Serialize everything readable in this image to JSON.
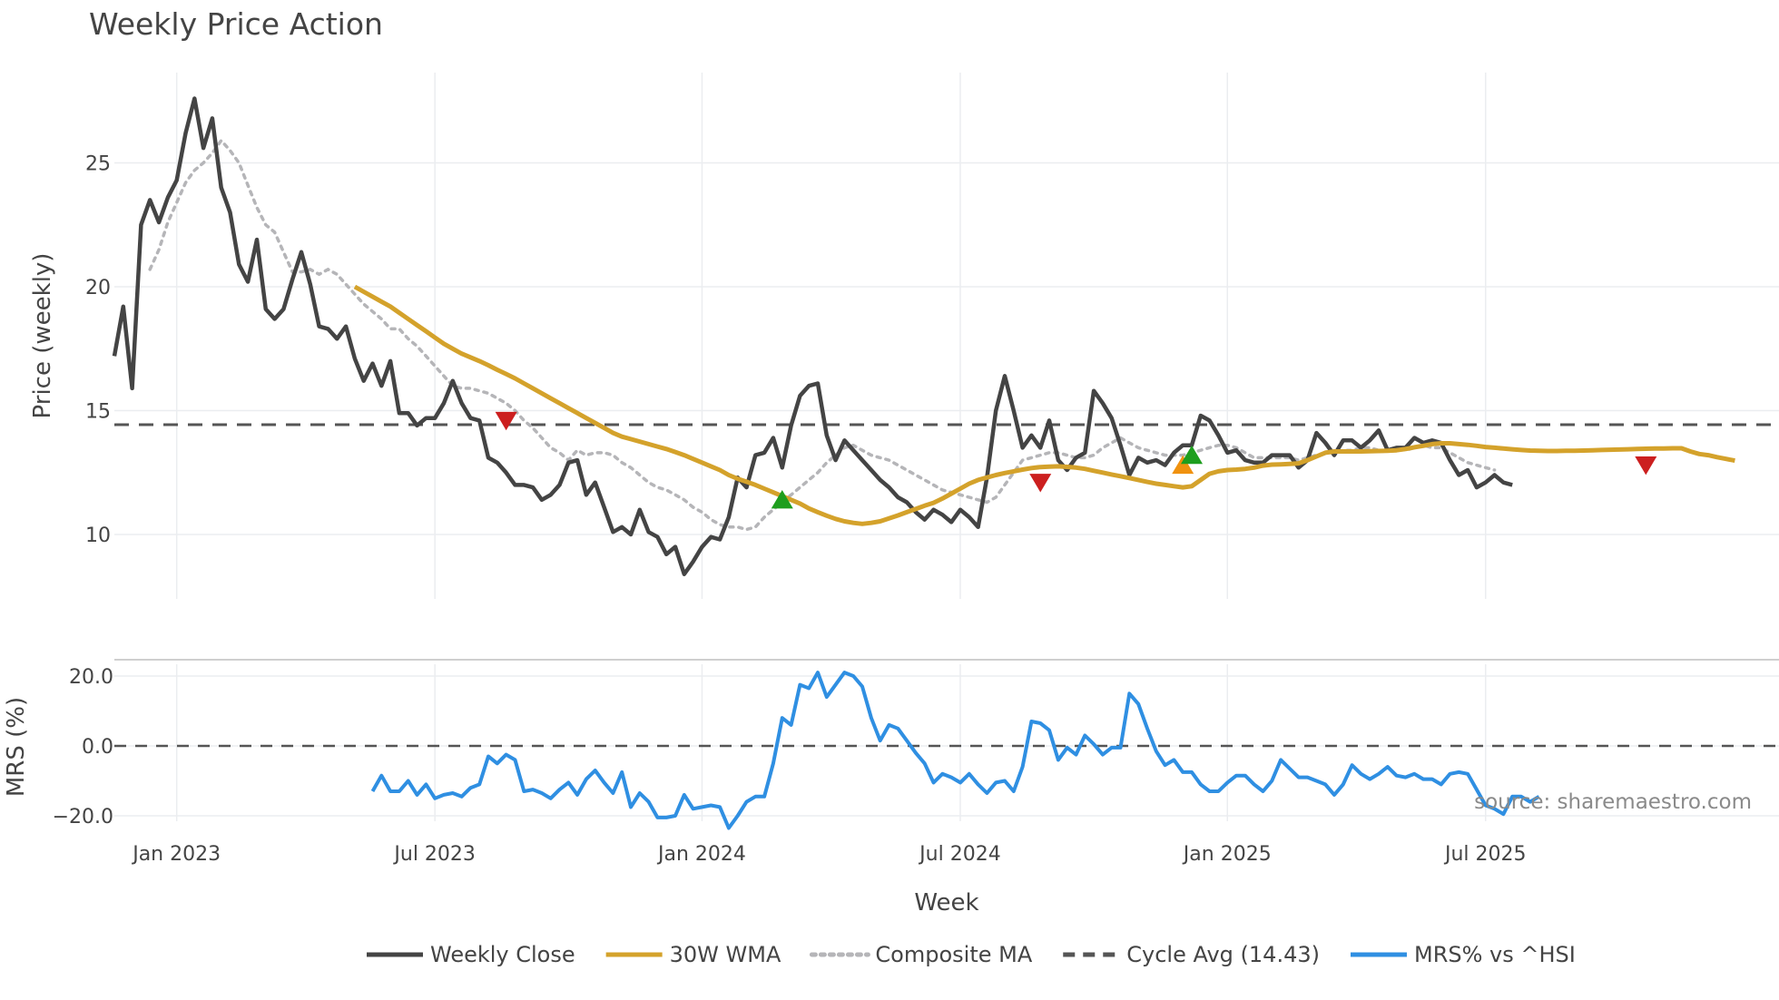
{
  "chart_data": {
    "type": "line",
    "title": "Weekly Price Action",
    "xlabel": "Week",
    "source": "source: sharemaestro.com",
    "x_ticks": [
      "Jan 2023",
      "Jul 2023",
      "Jan 2024",
      "Jul 2024",
      "Jan 2025",
      "Jul 2025"
    ],
    "price_panel": {
      "ylabel": "Price (weekly)",
      "y_ticks": [
        10,
        15,
        20,
        25
      ],
      "ylim": [
        7.5,
        28.5
      ],
      "weekly_close": [
        17.2,
        19.2,
        15.9,
        22.5,
        23.5,
        22.6,
        23.6,
        24.3,
        26.2,
        27.6,
        25.6,
        26.8,
        24,
        23,
        20.9,
        20.2,
        21.9,
        19.1,
        18.7,
        19.1,
        20.3,
        21.4,
        20.1,
        18.4,
        18.3,
        17.9,
        18.4,
        17.1,
        16.2,
        16.9,
        16.0,
        17.0,
        14.9,
        14.9,
        14.4,
        14.7,
        14.7,
        15.3,
        16.2,
        15.3,
        14.7,
        14.6,
        13.1,
        12.9,
        12.5,
        12.0,
        12.0,
        11.9,
        11.4,
        11.6,
        12.0,
        12.9,
        13.0,
        11.6,
        12.1,
        11.1,
        10.1,
        10.3,
        10.0,
        11.0,
        10.1,
        9.9,
        9.2,
        9.5,
        8.4,
        8.9,
        9.5,
        9.9,
        9.8,
        10.7,
        12.3,
        11.9,
        13.2,
        13.3,
        13.9,
        12.7,
        14.4,
        15.6,
        16.0,
        16.1,
        14.0,
        13.0,
        13.8,
        13.4,
        13.0,
        12.6,
        12.2,
        11.9,
        11.5,
        11.3,
        10.9,
        10.6,
        11.0,
        10.8,
        10.5,
        11.0,
        10.7,
        10.3,
        12.3,
        15.0,
        16.4,
        15.0,
        13.5,
        14.0,
        13.5,
        14.6,
        13.0,
        12.6,
        13.1,
        13.3,
        15.8,
        15.3,
        14.7,
        13.6,
        12.4,
        13.1,
        12.9,
        13.0,
        12.8,
        13.3,
        13.6,
        13.6,
        14.8,
        14.6,
        14.0,
        13.3,
        13.4,
        13.0,
        12.9,
        12.9,
        13.2,
        13.2,
        13.2,
        12.7,
        13.0,
        14.1,
        13.7,
        13.2,
        13.8,
        13.8,
        13.5,
        13.8,
        14.2,
        13.4,
        13.5,
        13.5,
        13.9,
        13.7,
        13.8,
        13.7,
        13.0,
        12.4,
        12.6,
        11.9,
        12.1,
        12.4,
        12.1,
        12.0
      ],
      "wma_30w": [
        20.0,
        19.8,
        19.6,
        19.4,
        19.2,
        18.95,
        18.7,
        18.45,
        18.2,
        17.95,
        17.7,
        17.5,
        17.3,
        17.15,
        17.0,
        16.83,
        16.65,
        16.48,
        16.3,
        16.1,
        15.9,
        15.7,
        15.5,
        15.3,
        15.1,
        14.9,
        14.7,
        14.5,
        14.3,
        14.1,
        13.95,
        13.85,
        13.75,
        13.65,
        13.55,
        13.45,
        13.33,
        13.2,
        13.05,
        12.9,
        12.75,
        12.6,
        12.4,
        12.25,
        12.13,
        12.0,
        11.85,
        11.7,
        11.55,
        11.4,
        11.25,
        11.05,
        10.9,
        10.76,
        10.63,
        10.53,
        10.47,
        10.43,
        10.47,
        10.53,
        10.65,
        10.77,
        10.9,
        11.03,
        11.16,
        11.28,
        11.45,
        11.65,
        11.85,
        12.05,
        12.2,
        12.3,
        12.4,
        12.48,
        12.55,
        12.62,
        12.68,
        12.72,
        12.74,
        12.75,
        12.73,
        12.7,
        12.65,
        12.57,
        12.5,
        12.42,
        12.35,
        12.28,
        12.2,
        12.12,
        12.05,
        12.0,
        11.95,
        11.9,
        11.95,
        12.2,
        12.45,
        12.55,
        12.6,
        12.62,
        12.65,
        12.7,
        12.78,
        12.82,
        12.83,
        12.85,
        12.87,
        13.0,
        13.15,
        13.3,
        13.35,
        13.35,
        13.35,
        13.35,
        13.36,
        13.37,
        13.38,
        13.4,
        13.45,
        13.52,
        13.58,
        13.65,
        13.68,
        13.68,
        13.65,
        13.62,
        13.58,
        13.53,
        13.5,
        13.47,
        13.44,
        13.41,
        13.39,
        13.38,
        13.37,
        13.37,
        13.38,
        13.38,
        13.39,
        13.4,
        13.41,
        13.42,
        13.43,
        13.44,
        13.45,
        13.46,
        13.47,
        13.47,
        13.48,
        13.48,
        13.35,
        13.25,
        13.2,
        13.12,
        13.05,
        12.98
      ],
      "composite_ma": [
        20.7,
        21.5,
        22.6,
        23.4,
        24.2,
        24.7,
        25.0,
        25.4,
        25.9,
        25.5,
        25.0,
        24.1,
        23.2,
        22.5,
        22.2,
        21.4,
        20.6,
        20.6,
        20.7,
        20.5,
        20.7,
        20.5,
        20.1,
        19.7,
        19.3,
        19.0,
        18.7,
        18.3,
        18.3,
        17.9,
        17.6,
        17.2,
        16.8,
        16.4,
        16.0,
        15.9,
        15.9,
        15.8,
        15.7,
        15.5,
        15.3,
        15.0,
        14.6,
        14.3,
        13.9,
        13.5,
        13.3,
        13.0,
        13.4,
        13.2,
        13.3,
        13.3,
        13.2,
        12.9,
        12.7,
        12.4,
        12.1,
        11.9,
        11.8,
        11.6,
        11.4,
        11.1,
        10.9,
        10.6,
        10.4,
        10.3,
        10.3,
        10.2,
        10.3,
        10.7,
        11.0,
        11.3,
        11.6,
        11.9,
        12.2,
        12.5,
        12.9,
        13.2,
        13.5,
        13.6,
        13.4,
        13.2,
        13.1,
        13.0,
        12.8,
        12.6,
        12.4,
        12.2,
        12.0,
        11.8,
        11.7,
        11.6,
        11.5,
        11.4,
        11.3,
        11.5,
        12.0,
        12.5,
        13.0,
        13.1,
        13.2,
        13.3,
        13.3,
        13.2,
        13.1,
        13.1,
        13.2,
        13.5,
        13.7,
        13.9,
        13.7,
        13.5,
        13.4,
        13.3,
        13.2,
        13.2,
        13.2,
        13.3,
        13.4,
        13.5,
        13.6,
        13.6,
        13.5,
        13.3,
        13.1,
        13.1,
        13.1,
        13.1,
        13.1,
        13.0,
        13.1,
        13.2,
        13.3,
        13.3,
        13.4,
        13.4,
        13.5,
        13.5,
        13.4,
        13.4,
        13.5,
        13.4,
        13.5,
        13.6,
        13.5,
        13.5,
        13.3,
        13.1,
        12.9,
        12.8,
        12.7,
        12.6
      ],
      "cycle_avg": 14.43,
      "markers": [
        {
          "week": 44,
          "price": 14.6,
          "type": "sell"
        },
        {
          "week": 75,
          "price": 11.4,
          "type": "buy"
        },
        {
          "week": 104,
          "price": 12.1,
          "type": "sell"
        },
        {
          "week": 120,
          "price": 12.8,
          "type": "buy-alt"
        },
        {
          "week": 121,
          "price": 13.2,
          "type": "buy"
        },
        {
          "week": 172,
          "price": 12.8,
          "type": "sell"
        }
      ]
    },
    "mrs_panel": {
      "ylabel": "MRS (%)",
      "y_ticks": [
        "20.0",
        "0.0",
        "−20.0"
      ],
      "ylim": [
        -27,
        27
      ],
      "x_start_week": 29,
      "values": [
        -13,
        -8.5,
        -13,
        -13,
        -10,
        -14,
        -11,
        -15,
        -14,
        -13.5,
        -14.5,
        -12,
        -11,
        -3,
        -5,
        -2.5,
        -4,
        -13,
        -12.5,
        -13.5,
        -15,
        -12.5,
        -10.5,
        -14,
        -9.5,
        -7,
        -10.5,
        -13.5,
        -7.5,
        -17.5,
        -13.5,
        -16,
        -20.5,
        -20.5,
        -20,
        -14,
        -18,
        -17.5,
        -17,
        -17.5,
        -23.5,
        -20,
        -16,
        -14.5,
        -14.5,
        -5,
        8,
        6,
        17.5,
        16.5,
        21,
        14,
        17.5,
        21,
        20,
        17,
        8,
        1.5,
        6,
        5,
        1.5,
        -2,
        -5,
        -10.5,
        -8,
        -9,
        -10.5,
        -8,
        -11,
        -13.5,
        -10.5,
        -10,
        -13,
        -6,
        7,
        6.5,
        4.5,
        -4,
        -0.5,
        -2.5,
        3,
        0.5,
        -2.5,
        -0.5,
        -0.5,
        15,
        12,
        5,
        -1.5,
        -5.5,
        -4,
        -7.5,
        -7.5,
        -11,
        -13,
        -13,
        -10.5,
        -8.5,
        -8.5,
        -11,
        -13,
        -10,
        -4,
        -6.5,
        -9,
        -9,
        -10,
        -11,
        -14,
        -11,
        -5.5,
        -8,
        -9.5,
        -8,
        -6,
        -8.5,
        -9,
        -8,
        -9.5,
        -9.5,
        -11,
        -8,
        -7.5,
        -8,
        -12.5,
        -17,
        -18,
        -19.5,
        -14.5,
        -14.5,
        -16,
        -14.5
      ]
    },
    "legend": [
      {
        "label": "Weekly Close",
        "color": "#444444",
        "style": "solid"
      },
      {
        "label": "30W WMA",
        "color": "#d4a22b",
        "style": "solid"
      },
      {
        "label": "Composite MA",
        "color": "#b5b5b8",
        "style": "dotted"
      },
      {
        "label": "Cycle Avg (14.43)",
        "color": "#555555",
        "style": "dashed"
      },
      {
        "label": "MRS% vs ^HSI",
        "color": "#2f8fe2",
        "style": "solid"
      }
    ]
  }
}
